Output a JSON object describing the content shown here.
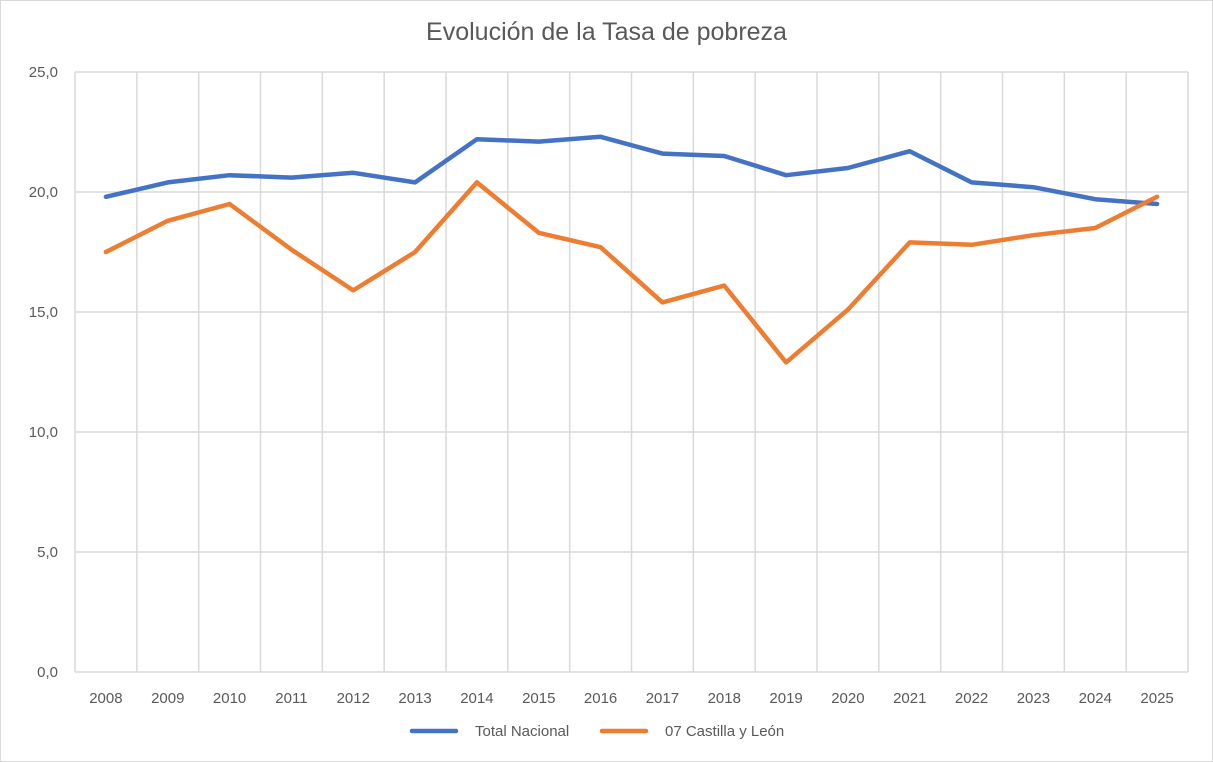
{
  "chart_data": {
    "type": "line",
    "title": "Evolución de la Tasa de pobreza",
    "xlabel": "",
    "ylabel": "",
    "categories": [
      "2008",
      "2009",
      "2010",
      "2011",
      "2012",
      "2013",
      "2014",
      "2015",
      "2016",
      "2017",
      "2018",
      "2019",
      "2020",
      "2021",
      "2022",
      "2023",
      "2024",
      "2025"
    ],
    "ylim": [
      0,
      25
    ],
    "yticks": [
      0,
      5,
      10,
      15,
      20,
      25
    ],
    "ytick_labels": [
      "0,0",
      "5,0",
      "10,0",
      "15,0",
      "20,0",
      "25,0"
    ],
    "grid": true,
    "legend_position": "bottom",
    "series": [
      {
        "name": "Total Nacional",
        "color": "#4472c4",
        "values": [
          19.8,
          20.4,
          20.7,
          20.6,
          20.8,
          20.4,
          22.2,
          22.1,
          22.3,
          21.6,
          21.5,
          20.7,
          21.0,
          21.7,
          20.4,
          20.2,
          19.7,
          19.5
        ]
      },
      {
        "name": "07 Castilla y León",
        "color": "#ed7d31",
        "values": [
          17.5,
          18.8,
          19.5,
          17.6,
          15.9,
          17.5,
          20.4,
          18.3,
          17.7,
          15.4,
          16.1,
          12.9,
          15.1,
          17.9,
          17.8,
          18.2,
          18.5,
          19.8
        ]
      }
    ]
  }
}
